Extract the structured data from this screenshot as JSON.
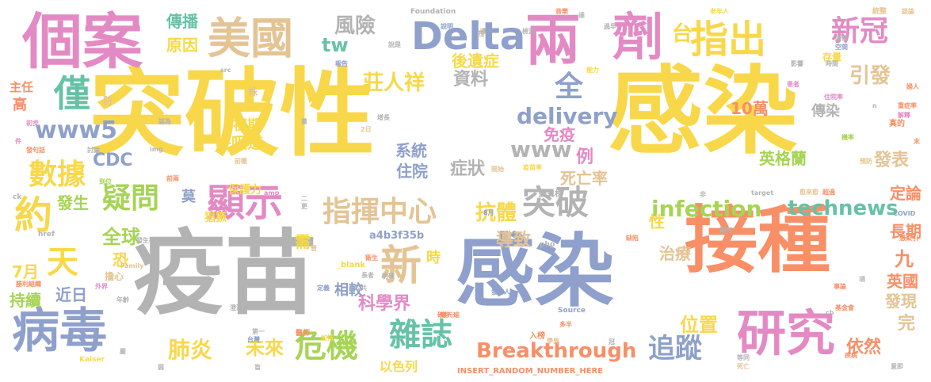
{
  "palette": {
    "yellow": "#f8d84a",
    "grey": "#b3b3b3",
    "blue": "#8ea0cb",
    "orange": "#f88f66",
    "pink": "#e38ac4",
    "tan": "#e4c494",
    "green": "#a6d454",
    "teal": "#66c2a5"
  },
  "words": [
    {
      "text": "突破性",
      "color": "yellow"
    },
    {
      "text": "感染",
      "color": "yellow"
    },
    {
      "text": "疫苗",
      "color": "grey"
    },
    {
      "text": "感染",
      "color": "blue"
    },
    {
      "text": "接種",
      "color": "orange"
    },
    {
      "text": "個案",
      "color": "pink"
    },
    {
      "text": "病毒",
      "color": "blue"
    },
    {
      "text": "研究",
      "color": "pink"
    },
    {
      "text": "美國",
      "color": "tan"
    },
    {
      "text": "Delta",
      "color": "blue"
    },
    {
      "text": "兩",
      "color": "pink"
    },
    {
      "text": "劑",
      "color": "pink"
    },
    {
      "text": "指出",
      "color": "yellow"
    },
    {
      "text": "新冠",
      "color": "pink"
    },
    {
      "text": "顯示",
      "color": "pink"
    },
    {
      "text": "指揮中心",
      "color": "tan"
    },
    {
      "text": "突破",
      "color": "grey"
    },
    {
      "text": "數據",
      "color": "yellow"
    },
    {
      "text": "疑問",
      "color": "green"
    },
    {
      "text": "危機",
      "color": "green"
    },
    {
      "text": "雜誌",
      "color": "teal"
    },
    {
      "text": "追蹤",
      "color": "blue"
    },
    {
      "text": "Breakthrough",
      "color": "orange"
    },
    {
      "text": "infection",
      "color": "green"
    },
    {
      "text": "technews",
      "color": "teal"
    },
    {
      "text": "delivery",
      "color": "blue"
    },
    {
      "text": "www5",
      "color": "blue"
    },
    {
      "text": "僅",
      "color": "teal"
    },
    {
      "text": "約",
      "color": "yellow"
    },
    {
      "text": "天",
      "color": "yellow"
    },
    {
      "text": "新",
      "color": "tan"
    },
    {
      "text": "台",
      "color": "yellow"
    },
    {
      "text": "風險",
      "color": "grey"
    },
    {
      "text": "肺炎",
      "color": "yellow"
    },
    {
      "text": "未來",
      "color": "yellow"
    },
    {
      "text": "莊人祥",
      "color": "yellow"
    },
    {
      "text": "CDC",
      "color": "blue"
    },
    {
      "text": "全球",
      "color": "green"
    },
    {
      "text": "引發",
      "color": "tan"
    },
    {
      "text": "資料",
      "color": "grey"
    },
    {
      "text": "全",
      "color": "blue"
    },
    {
      "text": "www",
      "color": "grey"
    },
    {
      "text": "抗體",
      "color": "yellow"
    },
    {
      "text": "科學界",
      "color": "pink"
    },
    {
      "text": "導致",
      "color": "tan"
    },
    {
      "text": "治療",
      "color": "tan"
    },
    {
      "text": "位置",
      "color": "yellow"
    },
    {
      "text": "依然",
      "color": "orange"
    },
    {
      "text": "英國",
      "color": "orange"
    },
    {
      "text": "發現",
      "color": "tan"
    },
    {
      "text": "英格蘭",
      "color": "green"
    },
    {
      "text": "發表",
      "color": "tan"
    },
    {
      "text": "定論",
      "color": "orange"
    },
    {
      "text": "長期",
      "color": "orange"
    },
    {
      "text": "九",
      "color": "orange"
    },
    {
      "text": "完",
      "color": "tan"
    },
    {
      "text": "傳播",
      "color": "teal"
    },
    {
      "text": "原因",
      "color": "yellow"
    },
    {
      "text": "tw",
      "color": "teal"
    },
    {
      "text": "後遺症",
      "color": "yellow"
    },
    {
      "text": "免疫",
      "color": "pink"
    },
    {
      "text": "系統",
      "color": "blue"
    },
    {
      "text": "住院",
      "color": "blue"
    },
    {
      "text": "症狀",
      "color": "grey"
    },
    {
      "text": "例",
      "color": "pink"
    },
    {
      "text": "死亡率",
      "color": "tan"
    },
    {
      "text": "10萬",
      "color": "orange"
    },
    {
      "text": "傳染",
      "color": "grey"
    },
    {
      "text": "初期",
      "color": "yellow"
    },
    {
      "text": "呼吸道",
      "color": "yellow"
    },
    {
      "text": "發生",
      "color": "green"
    },
    {
      "text": "莫",
      "color": "blue"
    },
    {
      "text": "恐",
      "color": "yellow"
    },
    {
      "text": "近日",
      "color": "blue"
    },
    {
      "text": "7月",
      "color": "yellow"
    },
    {
      "text": "持續",
      "color": "green"
    },
    {
      "text": "需",
      "color": "yellow"
    },
    {
      "text": "性",
      "color": "yellow"
    },
    {
      "text": "時",
      "color": "yellow"
    },
    {
      "text": "相較",
      "color": "blue"
    },
    {
      "text": "以色列",
      "color": "yellow"
    },
    {
      "text": "a4b3f35b",
      "color": "blue"
    },
    {
      "text": "主任",
      "color": "orange"
    },
    {
      "text": "高",
      "color": "orange"
    },
    {
      "text": "保護力",
      "color": "yellow"
    },
    {
      "text": "猖獗",
      "color": "yellow"
    },
    {
      "text": "擔心",
      "color": "tan"
    },
    {
      "text": "變異株",
      "color": "grey"
    },
    {
      "text": "INSERT_RANDOM_NUMBER_HERE",
      "color": "orange"
    },
    {
      "text": "_blank",
      "color": "yellow"
    },
    {
      "text": "Foundation",
      "color": "grey"
    },
    {
      "text": "Kaiser",
      "color": "yellow"
    },
    {
      "text": "Source",
      "color": "blue"
    },
    {
      "text": "COVID",
      "color": "blue"
    },
    {
      "text": "Family",
      "color": "tan"
    },
    {
      "text": "target",
      "color": "grey"
    },
    {
      "text": "php",
      "color": "grey"
    },
    {
      "text": "href",
      "color": "grey"
    },
    {
      "text": "amp",
      "color": "pink"
    },
    {
      "text": "src",
      "color": "grey"
    },
    {
      "text": "img",
      "color": "grey"
    },
    {
      "text": "cb",
      "color": "grey"
    },
    {
      "text": "ck",
      "color": "grey"
    },
    {
      "text": "株",
      "color": "tan"
    },
    {
      "text": "防",
      "color": "tan"
    },
    {
      "text": "鄭元瑜",
      "color": "orange"
    },
    {
      "text": "存量",
      "color": "yellow"
    },
    {
      "text": "老年人",
      "color": "yellow"
    },
    {
      "text": "報告",
      "color": "blue"
    },
    {
      "text": "檢測",
      "color": "grey"
    },
    {
      "text": "基金會",
      "color": "orange"
    },
    {
      "text": "統整",
      "color": "tan"
    },
    {
      "text": "談論",
      "color": "tan"
    },
    {
      "text": "公共",
      "color": "grey"
    },
    {
      "text": "醫師",
      "color": "orange"
    },
    {
      "text": "加持",
      "color": "yellow"
    },
    {
      "text": "事論",
      "color": "orange"
    },
    {
      "text": "感染引",
      "color": "orange"
    },
    {
      "text": "入榜",
      "color": "orange"
    },
    {
      "text": "學界",
      "color": "tan"
    },
    {
      "text": "多半",
      "color": "orange"
    },
    {
      "text": "第一",
      "color": "grey"
    },
    {
      "text": "台灣",
      "color": "blue"
    },
    {
      "text": "疾病",
      "color": "orange"
    },
    {
      "text": "抵抗",
      "color": "yellow"
    },
    {
      "text": "澄清",
      "color": "grey"
    },
    {
      "text": "等同",
      "color": "grey"
    },
    {
      "text": "死亡",
      "color": "tan"
    },
    {
      "text": "意即",
      "color": "grey"
    },
    {
      "text": "確診",
      "color": "orange"
    },
    {
      "text": "定義",
      "color": "blue"
    },
    {
      "text": "長者",
      "color": "grey"
    },
    {
      "text": "影響",
      "color": "grey"
    },
    {
      "text": "陽性",
      "color": "grey"
    },
    {
      "text": "空間",
      "color": "blue"
    },
    {
      "text": "患者",
      "color": "pink"
    },
    {
      "text": "時間",
      "color": "grey"
    },
    {
      "text": "住院率",
      "color": "pink"
    },
    {
      "text": "重症率",
      "color": "orange"
    },
    {
      "text": "解釋",
      "color": "pink"
    },
    {
      "text": "真的",
      "color": "orange"
    },
    {
      "text": "婦人",
      "color": "orange"
    },
    {
      "text": "機率",
      "color": "green"
    },
    {
      "text": "預防",
      "color": "tan"
    },
    {
      "text": "發言人",
      "color": "blue"
    },
    {
      "text": "缺陷",
      "color": "orange"
    },
    {
      "text": "期刊",
      "color": "grey"
    },
    {
      "text": "愈來愈",
      "color": "tan"
    },
    {
      "text": "超過",
      "color": "orange"
    },
    {
      "text": "能力",
      "color": "yellow"
    },
    {
      "text": "疫苗率",
      "color": "yellow"
    },
    {
      "text": "前瞻",
      "color": "tan"
    },
    {
      "text": "認為",
      "color": "grey"
    },
    {
      "text": "發句話",
      "color": "orange"
    },
    {
      "text": "討論",
      "color": "grey"
    },
    {
      "text": "到位",
      "color": "green"
    },
    {
      "text": "前兩",
      "color": "orange"
    },
    {
      "text": "初步",
      "color": "pink"
    },
    {
      "text": "發生率",
      "color": "grey"
    },
    {
      "text": "外界",
      "color": "pink"
    },
    {
      "text": "年齡",
      "color": "grey"
    },
    {
      "text": "勝利組織",
      "color": "orange"
    },
    {
      "text": "晉",
      "color": "tan"
    },
    {
      "text": "8月",
      "color": "blue"
    },
    {
      "text": "2日",
      "color": "tan"
    },
    {
      "text": "衛生",
      "color": "orange"
    },
    {
      "text": "說是",
      "color": "grey"
    },
    {
      "text": "明確",
      "color": "grey"
    },
    {
      "text": "開始",
      "color": "tan"
    },
    {
      "text": "逾",
      "color": "tan"
    },
    {
      "text": "四",
      "color": "grey"
    },
    {
      "text": "n",
      "color": "grey"
    },
    {
      "text": "a",
      "color": "grey"
    },
    {
      "text": "二",
      "color": "grey"
    },
    {
      "text": "更",
      "color": "grey"
    },
    {
      "text": "蓋",
      "color": "grey"
    },
    {
      "text": "非",
      "color": "grey"
    },
    {
      "text": "項",
      "color": "grey"
    },
    {
      "text": "弱",
      "color": "grey"
    },
    {
      "text": "嚴",
      "color": "grey"
    },
    {
      "text": "盲",
      "color": "grey"
    },
    {
      "text": "冠",
      "color": "grey"
    },
    {
      "text": "件",
      "color": "pink"
    },
    {
      "text": "達",
      "color": "grey"
    },
    {
      "text": "末",
      "color": "orange"
    },
    {
      "text": "增長",
      "color": "grey"
    },
    {
      "text": "過早",
      "color": "grey"
    },
    {
      "text": "說明",
      "color": "blue"
    },
    {
      "text": "音樂",
      "color": "orange"
    }
  ]
}
